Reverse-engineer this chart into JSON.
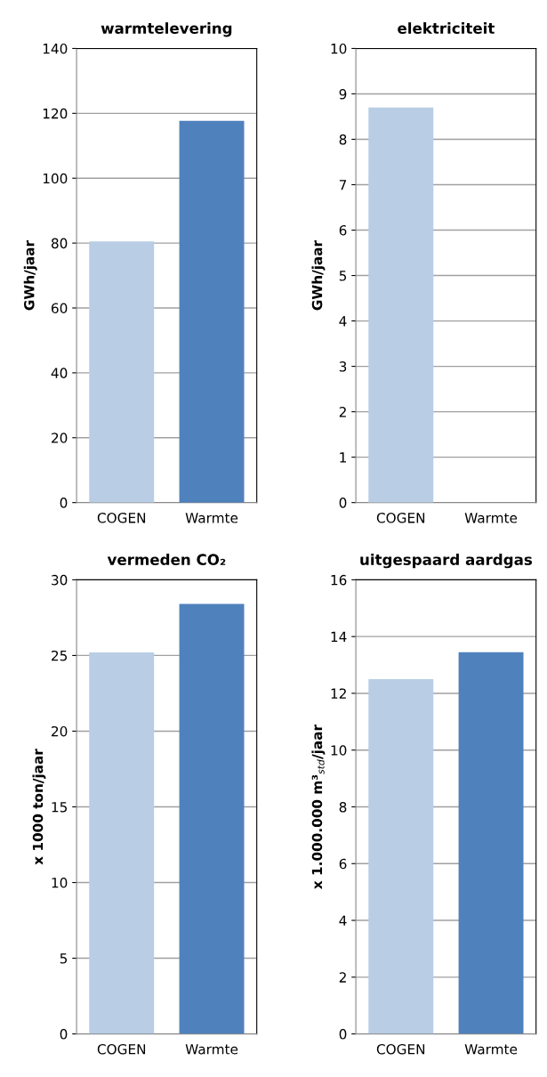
{
  "chart_data": [
    {
      "type": "bar",
      "title": "warmtelevering",
      "ylabel": "GWh/jaar",
      "categories": [
        "COGEN",
        "Warmte"
      ],
      "values": [
        80.5,
        117.7
      ],
      "colors": [
        "#b9cde5",
        "#4f81bd"
      ],
      "ylim": [
        0,
        140
      ],
      "yticks": [
        0,
        20,
        40,
        60,
        80,
        100,
        120,
        140
      ],
      "grid": "y"
    },
    {
      "type": "bar",
      "title": "elektriciteit",
      "ylabel": "GWh/jaar",
      "categories": [
        "COGEN",
        "Warmte"
      ],
      "values": [
        8.7,
        0
      ],
      "colors": [
        "#b9cde5",
        "#4f81bd"
      ],
      "ylim": [
        0,
        10
      ],
      "yticks": [
        0,
        1,
        2,
        3,
        4,
        5,
        6,
        7,
        8,
        9,
        10
      ],
      "grid": "y"
    },
    {
      "type": "bar",
      "title": "vermeden CO₂",
      "ylabel": "x 1000 ton/jaar",
      "categories": [
        "COGEN",
        "Warmte"
      ],
      "values": [
        25.2,
        28.4
      ],
      "colors": [
        "#b9cde5",
        "#4f81bd"
      ],
      "ylim": [
        0,
        30
      ],
      "yticks": [
        0,
        5,
        10,
        15,
        20,
        25,
        30
      ],
      "grid": "y"
    },
    {
      "type": "bar",
      "title": "uitgespaard aardgas",
      "ylabel": "x 1.000.000 m³$_{std}$/jaar",
      "categories": [
        "COGEN",
        "Warmte"
      ],
      "values": [
        12.5,
        13.45
      ],
      "colors": [
        "#b9cde5",
        "#4f81bd"
      ],
      "ylim": [
        0,
        16
      ],
      "yticks": [
        0,
        2,
        4,
        6,
        8,
        10,
        12,
        14,
        16
      ],
      "grid": "y"
    }
  ]
}
